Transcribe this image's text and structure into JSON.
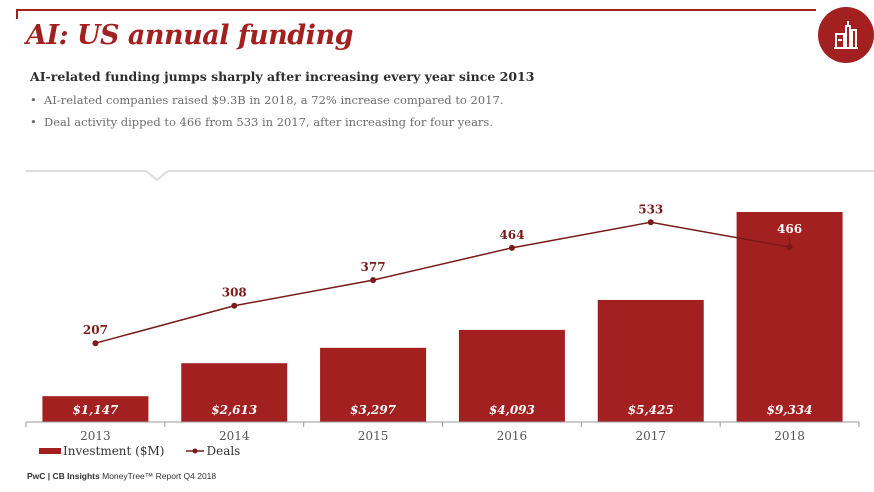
{
  "header": {
    "title": "AI: US annual funding",
    "badge_icon": "industry-icon"
  },
  "summary": {
    "headline": "AI-related funding jumps sharply after increasing every year since 2013",
    "bullets": [
      "AI-related companies raised $9.3B in 2018, a 72% increase compared to 2017.",
      "Deal activity dipped to 466 from 533 in 2017, after increasing for four years."
    ],
    "bullet_glyph": "•"
  },
  "colors": {
    "brand": "#a32020",
    "line": "#7a1a1a",
    "divider": "#dcdcdc",
    "axis": "#9a9a9a"
  },
  "chart_data": {
    "type": "bar",
    "title": "",
    "xlabel": "",
    "ylabel": "",
    "categories": [
      "2013",
      "2014",
      "2015",
      "2016",
      "2017",
      "2018"
    ],
    "series": [
      {
        "name": "Investment ($M)",
        "type": "bar",
        "values": [
          1147,
          2613,
          3297,
          4093,
          5425,
          9334
        ],
        "labels": [
          "$1,147",
          "$2,613",
          "$3,297",
          "$4,093",
          "$5,425",
          "$9,334"
        ]
      },
      {
        "name": "Deals",
        "type": "line",
        "values": [
          207,
          308,
          377,
          464,
          533,
          466
        ],
        "labels": [
          "207",
          "308",
          "377",
          "464",
          "533",
          "466"
        ]
      }
    ],
    "bar_axis_range": [
      0,
      10000
    ],
    "line_axis_range": [
      0,
      560
    ],
    "grid": false,
    "legend": "bottom-left"
  },
  "legend": {
    "investment_label": "Investment ($M)",
    "deals_label": "Deals"
  },
  "footer": {
    "source_bold": "PwC | CB Insights",
    "source_rest": " MoneyTree™ Report Q4 2018"
  }
}
